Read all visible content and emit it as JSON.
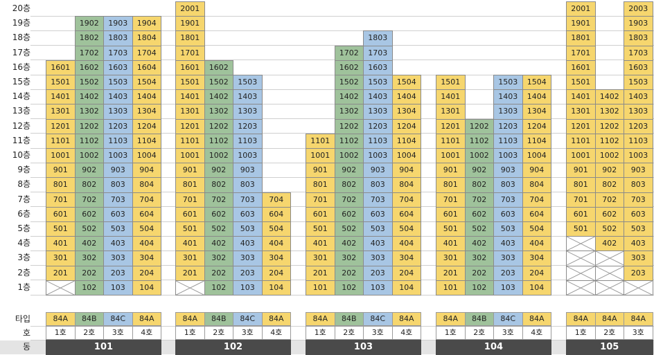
{
  "floor_labels": [
    "20층",
    "19층",
    "18층",
    "17층",
    "16층",
    "15층",
    "14층",
    "13층",
    "12층",
    "11층",
    "10층",
    "9층",
    "8층",
    "7층",
    "6층",
    "5층",
    "4층",
    "3층",
    "2층",
    "1층"
  ],
  "row_labels": {
    "type": "타입",
    "unit": "호",
    "building": "동"
  },
  "colors": {
    "type_84A": "#f6d66e",
    "type_84B": "#9fc29b",
    "type_84C": "#a8c6e4",
    "dong_bar": "#4a4a4a"
  },
  "buildings": [
    {
      "name": "101",
      "lines": [
        {
          "type": "84A",
          "unit": "1호",
          "floors": [
            1,
            16
          ],
          "x_floors": [
            1
          ]
        },
        {
          "type": "84B",
          "unit": "2호",
          "floors": [
            1,
            19
          ]
        },
        {
          "type": "84C",
          "unit": "3호",
          "floors": [
            1,
            19
          ]
        },
        {
          "type": "84A",
          "unit": "4호",
          "floors": [
            1,
            19
          ]
        }
      ]
    },
    {
      "name": "102",
      "lines": [
        {
          "type": "84A",
          "unit": "1호",
          "floors": [
            1,
            20
          ],
          "x_floors": [
            1
          ]
        },
        {
          "type": "84B",
          "unit": "2호",
          "floors": [
            1,
            16
          ]
        },
        {
          "type": "84C",
          "unit": "3호",
          "floors": [
            1,
            15
          ]
        },
        {
          "type": "84A",
          "unit": "4호",
          "floors": [
            1,
            7
          ]
        }
      ]
    },
    {
      "name": "103",
      "lines": [
        {
          "type": "84A",
          "unit": "1호",
          "floors": [
            1,
            11
          ]
        },
        {
          "type": "84B",
          "unit": "2호",
          "floors": [
            1,
            17
          ]
        },
        {
          "type": "84C",
          "unit": "3호",
          "floors": [
            1,
            18
          ]
        },
        {
          "type": "84A",
          "unit": "4호",
          "floors": [
            1,
            15
          ]
        }
      ]
    },
    {
      "name": "104",
      "lines": [
        {
          "type": "84A",
          "unit": "1호",
          "floors": [
            1,
            15
          ]
        },
        {
          "type": "84B",
          "unit": "2호",
          "floors": [
            1,
            12
          ]
        },
        {
          "type": "84C",
          "unit": "3호",
          "floors": [
            1,
            15
          ]
        },
        {
          "type": "84A",
          "unit": "4호",
          "floors": [
            1,
            15
          ]
        }
      ]
    },
    {
      "name": "105",
      "lines": [
        {
          "type": "84A",
          "unit": "1호",
          "floors": [
            1,
            20
          ],
          "x_floors": [
            1,
            2,
            3,
            4
          ]
        },
        {
          "type": "84A",
          "unit": "2호",
          "floors": [
            1,
            14
          ],
          "x_floors": [
            1,
            2,
            3
          ]
        },
        {
          "type": "84A",
          "unit": "3호",
          "floors": [
            1,
            20
          ],
          "x_floors": [
            1
          ]
        }
      ]
    }
  ]
}
